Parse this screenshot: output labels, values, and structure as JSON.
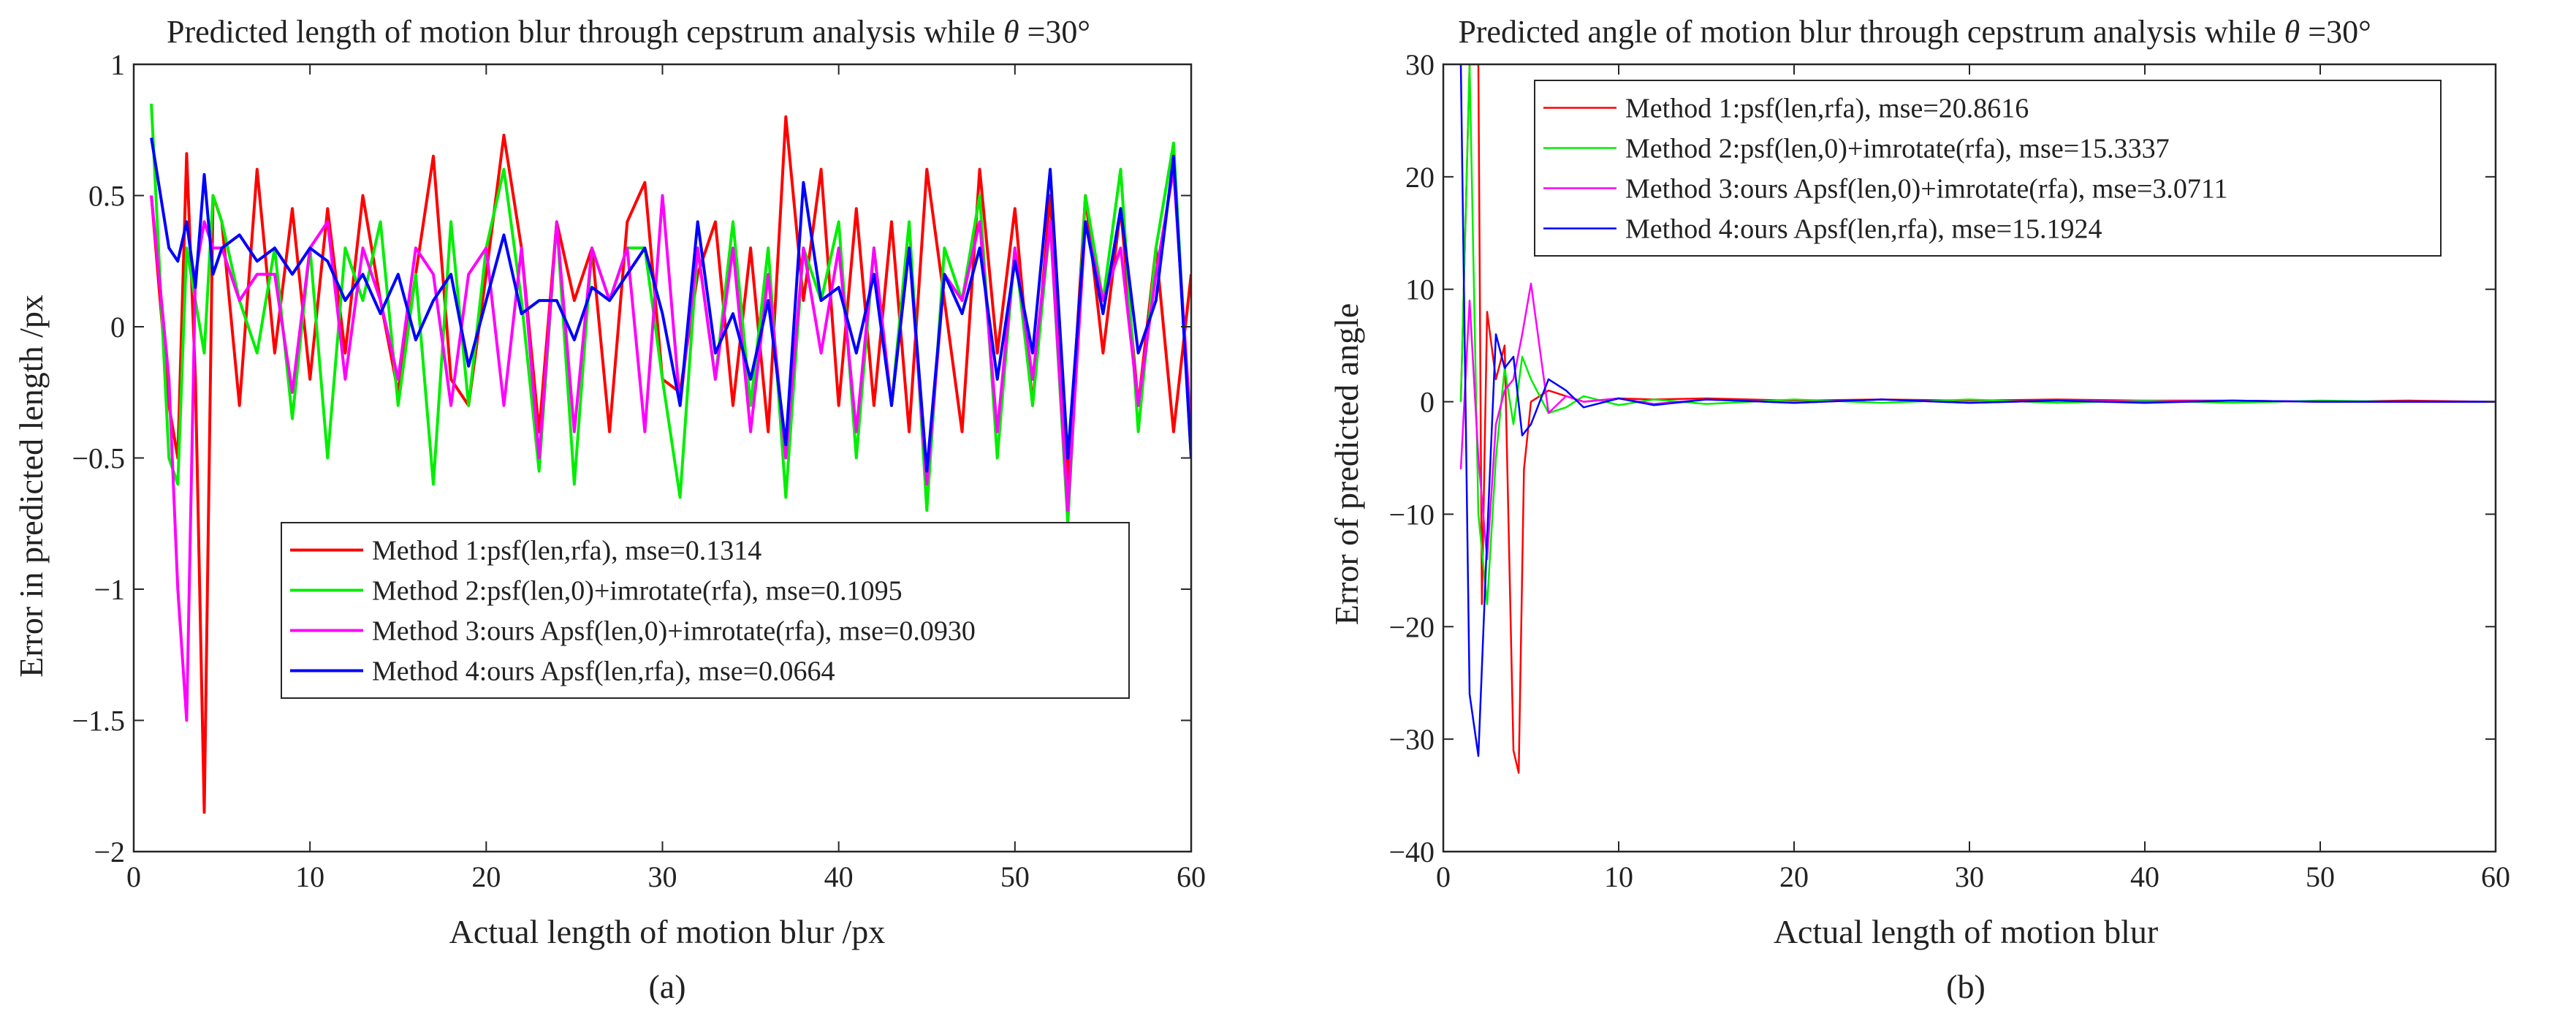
{
  "chart_data": [
    {
      "type": "line",
      "panel": "a",
      "caption": "(a)",
      "title": "Predicted length of motion blur through cepstrum analysis while",
      "title_symbol": "θ",
      "title_suffix": " =30°",
      "xlabel": "Actual length of motion blur /px",
      "ylabel": "Error in predicted length /px",
      "xlim": [
        0,
        60
      ],
      "ylim": [
        -2,
        1
      ],
      "xticks": [
        0,
        10,
        20,
        30,
        40,
        50,
        60
      ],
      "yticks": [
        -2,
        -1.5,
        -1,
        -0.5,
        0,
        0.5,
        1
      ],
      "ytick_labels": [
        "−2",
        "−1.5",
        "−1",
        "−0.5",
        "0",
        "0.5",
        "1"
      ],
      "legend_position": "lower-center",
      "series": [
        {
          "name": "Method 1:psf(len,rfa), mse=0.1314",
          "color": "#ff0000",
          "x": [
            1,
            2,
            2.5,
            3,
            3.5,
            4,
            4.5,
            5,
            6,
            7,
            8,
            9,
            10,
            11,
            12,
            13,
            14,
            15,
            16,
            17,
            18,
            19,
            20,
            21,
            22,
            23,
            24,
            25,
            26,
            27,
            28,
            29,
            30,
            31,
            32,
            33,
            34,
            35,
            36,
            37,
            38,
            39,
            40,
            41,
            42,
            43,
            44,
            45,
            46,
            47,
            48,
            49,
            50,
            51,
            52,
            53,
            54,
            55,
            56,
            57,
            58,
            59,
            60
          ],
          "values": [
            0.5,
            -0.3,
            -0.5,
            0.66,
            -0.2,
            -1.85,
            0.5,
            0.4,
            -0.3,
            0.6,
            -0.1,
            0.45,
            -0.2,
            0.45,
            -0.1,
            0.5,
            0.1,
            -0.25,
            0.2,
            0.65,
            -0.2,
            -0.3,
            0.2,
            0.73,
            0.3,
            -0.4,
            0.4,
            0.1,
            0.3,
            -0.4,
            0.4,
            0.55,
            -0.2,
            -0.25,
            0.2,
            0.4,
            -0.3,
            0.3,
            -0.4,
            0.8,
            0.1,
            0.6,
            -0.3,
            0.45,
            -0.3,
            0.4,
            -0.4,
            0.6,
            0.1,
            -0.4,
            0.6,
            -0.1,
            0.45,
            -0.3,
            0.5,
            -0.6,
            0.5,
            -0.1,
            0.45,
            -0.3,
            0.3,
            -0.4,
            0.2
          ]
        },
        {
          "name": "Method 2:psf(len,0)+imrotate(rfa), mse=0.1095",
          "color": "#00ee00",
          "x": [
            1,
            2,
            2.5,
            3,
            3.5,
            4,
            4.5,
            5,
            6,
            7,
            8,
            9,
            10,
            11,
            12,
            13,
            14,
            15,
            16,
            17,
            18,
            19,
            20,
            21,
            22,
            23,
            24,
            25,
            26,
            27,
            28,
            29,
            30,
            31,
            32,
            33,
            34,
            35,
            36,
            37,
            38,
            39,
            40,
            41,
            42,
            43,
            44,
            45,
            46,
            47,
            48,
            49,
            50,
            51,
            52,
            53,
            54,
            55,
            56,
            57,
            58,
            59,
            60
          ],
          "values": [
            0.85,
            -0.5,
            -0.6,
            0.3,
            0.1,
            -0.1,
            0.5,
            0.4,
            0.1,
            -0.1,
            0.3,
            -0.35,
            0.3,
            -0.5,
            0.3,
            0.1,
            0.4,
            -0.3,
            0.2,
            -0.6,
            0.4,
            -0.3,
            0.3,
            0.6,
            0.1,
            -0.55,
            0.4,
            -0.6,
            0.3,
            0.1,
            0.3,
            0.3,
            -0.2,
            -0.65,
            0.3,
            -0.2,
            0.4,
            -0.3,
            0.3,
            -0.65,
            0.3,
            0.1,
            0.4,
            -0.5,
            0.3,
            -0.3,
            0.4,
            -0.7,
            0.3,
            0.1,
            0.5,
            -0.5,
            0.3,
            -0.3,
            0.4,
            -0.75,
            0.5,
            0.1,
            0.6,
            -0.4,
            0.3,
            0.7,
            -0.5
          ]
        },
        {
          "name": "Method 3:ours Apsf(len,0)+imrotate(rfa), mse=0.0930",
          "color": "#ff00ff",
          "x": [
            1,
            2,
            2.5,
            3,
            3.5,
            4,
            4.5,
            5,
            6,
            7,
            8,
            9,
            10,
            11,
            12,
            13,
            14,
            15,
            16,
            17,
            18,
            19,
            20,
            21,
            22,
            23,
            24,
            25,
            26,
            27,
            28,
            29,
            30,
            31,
            32,
            33,
            34,
            35,
            36,
            37,
            38,
            39,
            40,
            41,
            42,
            43,
            44,
            45,
            46,
            47,
            48,
            49,
            50,
            51,
            52,
            53,
            54,
            55,
            56,
            57,
            58,
            59,
            60
          ],
          "values": [
            0.5,
            -0.2,
            -1.0,
            -1.5,
            0.2,
            0.4,
            0.3,
            0.3,
            0.1,
            0.2,
            0.2,
            -0.25,
            0.3,
            0.4,
            -0.2,
            0.3,
            0.1,
            -0.2,
            0.3,
            0.2,
            -0.3,
            0.2,
            0.3,
            -0.3,
            0.3,
            -0.5,
            0.4,
            -0.4,
            0.3,
            0.1,
            0.3,
            -0.4,
            0.5,
            -0.3,
            0.3,
            -0.2,
            0.3,
            -0.4,
            0.2,
            -0.5,
            0.3,
            -0.1,
            0.3,
            -0.4,
            0.3,
            -0.3,
            0.3,
            -0.6,
            0.2,
            0.1,
            0.4,
            -0.4,
            0.3,
            -0.2,
            0.4,
            -0.7,
            0.4,
            0.1,
            0.3,
            -0.3,
            0.2,
            0.6,
            -0.4
          ]
        },
        {
          "name": "Method 4:ours Apsf(len,rfa), mse=0.0664",
          "color": "#0000ff",
          "x": [
            1,
            2,
            2.5,
            3,
            3.5,
            4,
            4.5,
            5,
            6,
            7,
            8,
            9,
            10,
            11,
            12,
            13,
            14,
            15,
            16,
            17,
            18,
            19,
            20,
            21,
            22,
            23,
            24,
            25,
            26,
            27,
            28,
            29,
            30,
            31,
            32,
            33,
            34,
            35,
            36,
            37,
            38,
            39,
            40,
            41,
            42,
            43,
            44,
            45,
            46,
            47,
            48,
            49,
            50,
            51,
            52,
            53,
            54,
            55,
            56,
            57,
            58,
            59,
            60
          ],
          "values": [
            0.72,
            0.3,
            0.25,
            0.4,
            0.15,
            0.58,
            0.2,
            0.3,
            0.35,
            0.25,
            0.3,
            0.2,
            0.3,
            0.25,
            0.1,
            0.2,
            0.05,
            0.2,
            -0.05,
            0.1,
            0.2,
            -0.15,
            0.1,
            0.35,
            0.05,
            0.1,
            0.1,
            -0.05,
            0.15,
            0.1,
            0.2,
            0.3,
            0.05,
            -0.3,
            0.4,
            -0.1,
            0.05,
            -0.2,
            0.1,
            -0.45,
            0.55,
            0.1,
            0.15,
            -0.1,
            0.2,
            -0.3,
            0.3,
            -0.55,
            0.2,
            0.05,
            0.3,
            -0.2,
            0.25,
            -0.1,
            0.6,
            -0.5,
            0.4,
            0.05,
            0.45,
            -0.1,
            0.1,
            0.65,
            -0.5
          ]
        }
      ]
    },
    {
      "type": "line",
      "panel": "b",
      "caption": "(b)",
      "title": "Predicted angle of motion blur through cepstrum analysis while",
      "title_symbol": "θ",
      "title_suffix": " =30°",
      "xlabel": "Actual length of motion blur",
      "ylabel": "Error of predicted angle",
      "xlim": [
        0,
        60
      ],
      "ylim": [
        -40,
        30
      ],
      "xticks": [
        0,
        10,
        20,
        30,
        40,
        50,
        60
      ],
      "yticks": [
        -40,
        -30,
        -20,
        -10,
        0,
        10,
        20,
        30
      ],
      "ytick_labels": [
        "−40",
        "−30",
        "−20",
        "−10",
        "0",
        "10",
        "20",
        "30"
      ],
      "legend_position": "top-left",
      "series": [
        {
          "name": "Method 1:psf(len,rfa), mse=20.8616",
          "color": "#ff0000",
          "x": [
            1,
            1.5,
            2,
            2.2,
            2.5,
            3,
            3.5,
            4,
            4.3,
            4.6,
            5,
            6,
            7,
            8,
            10,
            12,
            15,
            20,
            25,
            30,
            35,
            40,
            45,
            50,
            55,
            60
          ],
          "values": [
            0,
            30,
            30,
            -18,
            8,
            2,
            5,
            -31,
            -33,
            -6,
            0,
            1,
            0.5,
            0,
            0.3,
            0.2,
            0.3,
            0.1,
            0.2,
            0.1,
            0.2,
            0.1,
            0.1,
            0,
            0.1,
            0
          ]
        },
        {
          "name": "Method 2:psf(len,0)+imrotate(rfa), mse=15.3337",
          "color": "#00ee00",
          "x": [
            1,
            1.5,
            2,
            2.5,
            3,
            3.5,
            4,
            4.5,
            5,
            6,
            7,
            8,
            10,
            12,
            15,
            20,
            25,
            30,
            35,
            40,
            45,
            50,
            55,
            60
          ],
          "values": [
            0,
            30,
            -10,
            -18,
            -5,
            3,
            -2,
            4,
            2,
            -1,
            -0.5,
            0.5,
            -0.3,
            0.2,
            -0.2,
            0.2,
            -0.1,
            0.2,
            -0.1,
            0.1,
            -0.1,
            0.1,
            0,
            0
          ]
        },
        {
          "name": "Method 3:ours Apsf(len,0)+imrotate(rfa), mse=3.0711",
          "color": "#ff00ff",
          "x": [
            1,
            1.5,
            2,
            2.5,
            3,
            3.5,
            4,
            4.5,
            5,
            6,
            7,
            8,
            10,
            12,
            15,
            20,
            25,
            30,
            35,
            40,
            45,
            50,
            55,
            60
          ],
          "values": [
            -6,
            9,
            -5,
            -14,
            -2,
            1,
            2,
            6,
            10.5,
            -1,
            0.5,
            0,
            0.3,
            -0.2,
            0.2,
            -0.1,
            0.2,
            -0.1,
            0.1,
            0,
            0.1,
            0,
            0,
            0
          ]
        },
        {
          "name": "Method 4:ours Apsf(len,rfa), mse=15.1924",
          "color": "#0000ff",
          "x": [
            1,
            1.5,
            2,
            2.5,
            3,
            3.5,
            4,
            4.5,
            5,
            6,
            7,
            8,
            10,
            12,
            15,
            20,
            25,
            30,
            35,
            40,
            45,
            50,
            55,
            60
          ],
          "values": [
            30,
            -26,
            -31.5,
            -12,
            6,
            3,
            4,
            -3,
            -2,
            2,
            1,
            -0.5,
            0.3,
            -0.3,
            0.2,
            -0.1,
            0.2,
            -0.1,
            0.1,
            -0.1,
            0.1,
            0,
            0,
            0
          ]
        }
      ]
    }
  ]
}
